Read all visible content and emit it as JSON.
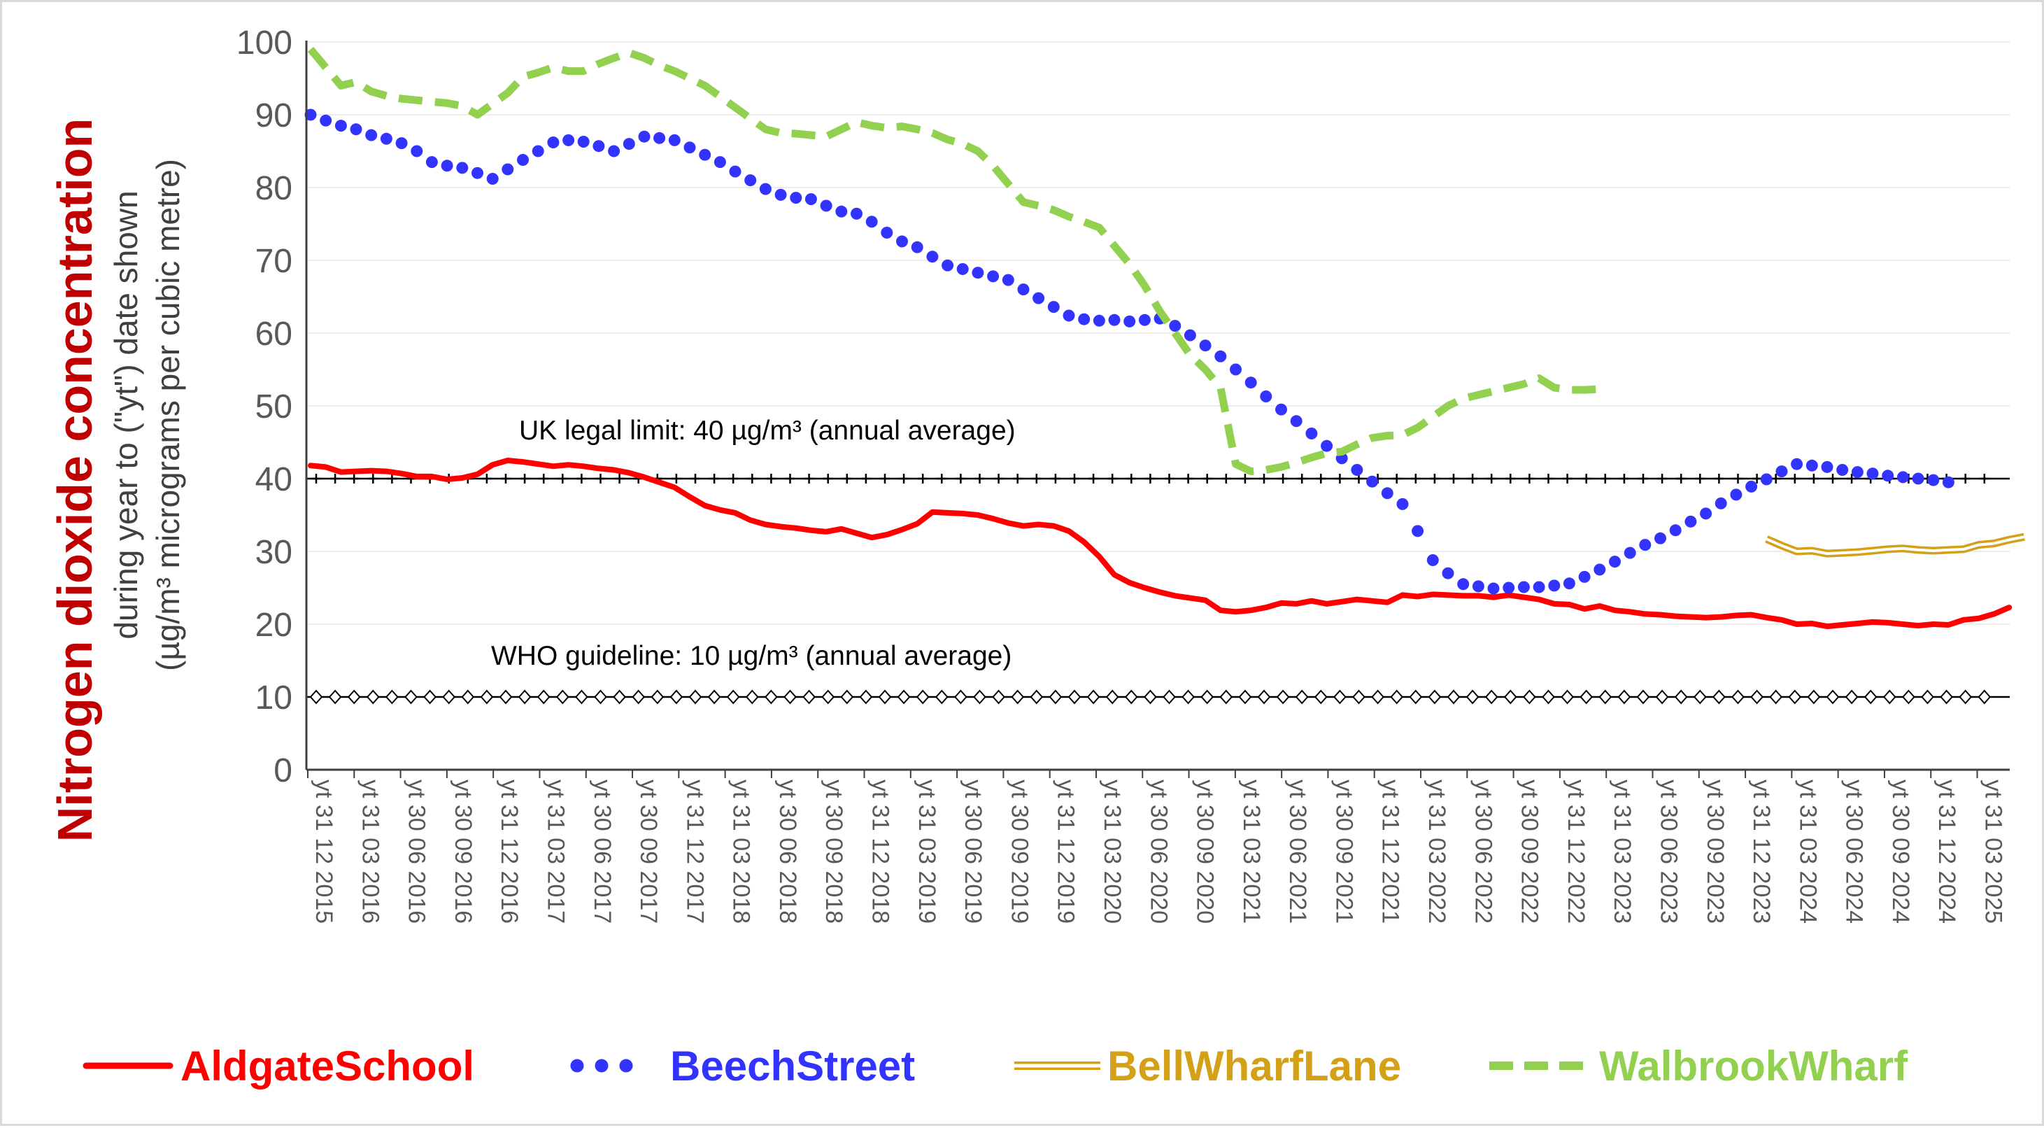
{
  "chart_data": {
    "type": "line",
    "title": "",
    "ylabel": "Nitrogen dioxide concentration",
    "ylabel_sub1": "during year to (\"yt\") date shown",
    "ylabel_sub2": "(µg/m³ micrograms per cubic metre)",
    "xlabel": "",
    "ylim": [
      0,
      100
    ],
    "yticks": [
      "0",
      "10",
      "20",
      "30",
      "40",
      "50",
      "60",
      "70",
      "80",
      "90",
      "100"
    ],
    "grid": true,
    "legend_position": "bottom",
    "x_tick_labels": [
      "yt 31 12 2015",
      "yt 31 03 2016",
      "yt 30 06 2016",
      "yt 30 09 2016",
      "yt 31 12 2016",
      "yt 31 03 2017",
      "yt 30 06 2017",
      "yt 30 09 2017",
      "yt 31 12 2017",
      "yt 31 03 2018",
      "yt 30 06 2018",
      "yt 30 09 2018",
      "yt 31 12 2018",
      "yt 31 03 2019",
      "yt 30 06 2019",
      "yt 30 09 2019",
      "yt 31 12 2019",
      "yt 31 03 2020",
      "yt 30 06 2020",
      "yt 30 09 2020",
      "yt 31 03 2021",
      "yt 30 06 2021",
      "yt 30 09 2021",
      "yt 31 12 2021",
      "yt 31 03 2022",
      "yt 30 06 2022",
      "yt 30 09 2022",
      "yt 31 12 2022",
      "yt 31 03 2023",
      "yt 30 06 2023",
      "yt 30 09 2023",
      "yt 31 12 2023",
      "yt 31 03 2024",
      "yt 30 06 2024",
      "yt 30 09 2024",
      "yt 31 12 2024",
      "yt 31 03 2025"
    ],
    "reference_lines": [
      {
        "label": "UK legal limit:  40 µg/m³ (annual average)",
        "value": 40,
        "marker": "plus",
        "color": "#000000"
      },
      {
        "label": "WHO guideline:  10 µg/m³ (annual average)",
        "value": 10,
        "marker": "diamond",
        "color": "#000000"
      }
    ],
    "series": [
      {
        "name": "AldgateSchool",
        "color": "#ff0000",
        "style": "solid",
        "start_month": 0,
        "values": [
          41.8,
          41.6,
          40.9,
          41.0,
          41.1,
          41.0,
          40.7,
          40.3,
          40.3,
          39.9,
          40.1,
          40.6,
          41.9,
          42.5,
          42.3,
          42.0,
          41.7,
          41.9,
          41.7,
          41.4,
          41.2,
          40.8,
          40.2,
          39.5,
          38.8,
          37.5,
          36.3,
          35.7,
          35.3,
          34.3,
          33.7,
          33.4,
          33.2,
          32.9,
          32.7,
          33.1,
          32.5,
          31.9,
          32.3,
          33.0,
          33.8,
          35.4,
          35.3,
          35.2,
          35.0,
          34.5,
          33.9,
          33.5,
          33.7,
          33.5,
          32.8,
          31.3,
          29.3,
          26.8,
          25.7,
          25.0,
          24.4,
          23.9,
          23.6,
          23.3,
          21.9,
          21.7,
          21.9,
          22.3,
          22.9,
          22.8,
          23.2,
          22.8,
          23.1,
          23.4,
          23.2,
          23.0,
          24.0,
          23.8,
          24.1,
          24.0,
          23.9,
          23.9,
          23.7,
          24.0,
          23.7,
          23.4,
          22.8,
          22.7,
          22.1,
          22.5,
          21.9,
          21.7,
          21.4,
          21.3,
          21.1,
          21.0,
          20.9,
          21.0,
          21.2,
          21.3,
          20.9,
          20.6,
          20.0,
          20.1,
          19.7,
          19.9,
          20.1,
          20.3,
          20.2,
          20.0,
          19.8,
          20.0,
          19.9,
          20.6,
          20.8,
          21.4,
          22.3
        ]
      },
      {
        "name": "BeechStreet",
        "color": "#3333ff",
        "style": "dotted",
        "start_month": 0,
        "values": [
          90.0,
          89.2,
          88.5,
          88.0,
          87.2,
          86.7,
          86.1,
          85.0,
          83.5,
          83.0,
          82.7,
          82.0,
          81.2,
          82.5,
          83.8,
          85.0,
          86.2,
          86.5,
          86.3,
          85.7,
          85.0,
          86.0,
          87.0,
          86.8,
          86.5,
          85.5,
          84.5,
          83.5,
          82.2,
          81.0,
          79.8,
          79.0,
          78.6,
          78.4,
          77.5,
          76.7,
          76.4,
          75.3,
          73.8,
          72.6,
          71.8,
          70.5,
          69.3,
          68.8,
          68.3,
          67.8,
          67.3,
          66.0,
          64.8,
          63.6,
          62.4,
          61.9,
          61.7,
          61.8,
          61.6,
          61.8,
          62.0,
          61.0,
          59.7,
          58.3,
          56.8,
          55.0,
          53.2,
          51.3,
          49.5,
          47.9,
          46.2,
          44.5,
          42.8,
          41.2,
          39.6,
          38.0,
          36.5,
          32.8,
          28.8,
          27.0,
          25.5,
          25.2,
          24.9,
          25.0,
          25.1,
          25.1,
          25.3,
          25.6,
          26.5,
          27.5,
          28.6,
          29.8,
          30.9,
          31.8,
          32.9,
          34.1,
          35.2,
          36.6,
          37.8,
          38.9,
          39.9,
          41.0,
          42.0,
          41.8,
          41.6,
          41.2,
          40.9,
          40.7,
          40.4,
          40.2,
          40.0,
          39.8,
          39.5
        ]
      },
      {
        "name": "BellWharfLane",
        "color": "#d4a017",
        "style": "double",
        "start_month": 96,
        "values": [
          31.7,
          30.8,
          30.0,
          30.1,
          29.7,
          29.8,
          29.9,
          30.1,
          30.3,
          30.4,
          30.2,
          30.1,
          30.2,
          30.3,
          30.9,
          31.1,
          31.6,
          32.0
        ]
      },
      {
        "name": "WalbrookWharf",
        "color": "#92d050",
        "style": "dashed",
        "start_month": 0,
        "values": [
          99.0,
          96.5,
          94.0,
          94.5,
          93.2,
          92.6,
          92.2,
          92.0,
          91.8,
          91.6,
          91.2,
          90.0,
          91.5,
          93.0,
          95.2,
          95.8,
          96.5,
          96.0,
          96.0,
          97.0,
          97.8,
          98.5,
          97.8,
          96.8,
          96.0,
          95.0,
          94.0,
          92.5,
          91.0,
          89.5,
          88.0,
          87.5,
          87.4,
          87.2,
          87.0,
          88.0,
          89.0,
          88.5,
          88.2,
          88.4,
          88.0,
          87.5,
          86.6,
          86.0,
          85.0,
          83.0,
          80.5,
          78.0,
          77.5,
          76.9,
          76.0,
          75.3,
          74.5,
          72.0,
          69.5,
          66.5,
          63.0,
          60.0,
          57.0,
          55.0,
          52.5,
          42.0,
          41.0,
          41.2,
          41.6,
          42.2,
          42.9,
          43.5,
          43.7,
          44.7,
          45.6,
          45.9,
          46.0,
          47.0,
          48.5,
          50.0,
          51.0,
          51.5,
          52.0,
          52.5,
          53.0,
          53.8,
          52.5,
          52.2,
          52.2,
          52.3
        ]
      }
    ]
  }
}
